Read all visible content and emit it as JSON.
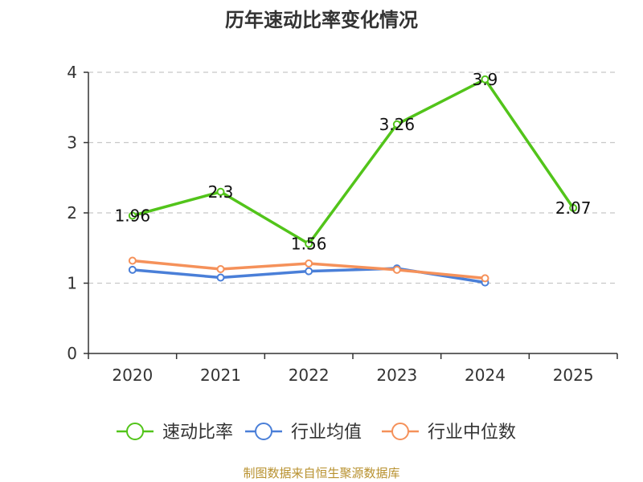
{
  "chart_data": {
    "type": "line",
    "title": "历年速动比率变化情况",
    "categories": [
      "2020",
      "2021",
      "2022",
      "2023",
      "2024",
      "2025"
    ],
    "ylim": [
      0,
      4
    ],
    "yticks": [
      "0",
      "1",
      "2",
      "3",
      "4"
    ],
    "grid": true,
    "legend_position": "bottom",
    "series": [
      {
        "name": "速动比率",
        "color": "#52c41a",
        "values": [
          1.96,
          2.3,
          1.56,
          3.26,
          3.9,
          2.07
        ],
        "labels": [
          "1.96",
          "2.3",
          "1.56",
          "3.26",
          "3.9",
          "2.07"
        ]
      },
      {
        "name": "行业均值",
        "color": "#4a7fd8",
        "values": [
          1.19,
          1.08,
          1.17,
          1.21,
          1.01,
          null
        ]
      },
      {
        "name": "行业中位数",
        "color": "#f5915a",
        "values": [
          1.32,
          1.2,
          1.28,
          1.19,
          1.07,
          null
        ]
      }
    ]
  },
  "source": "制图数据来自恒生聚源数据库"
}
